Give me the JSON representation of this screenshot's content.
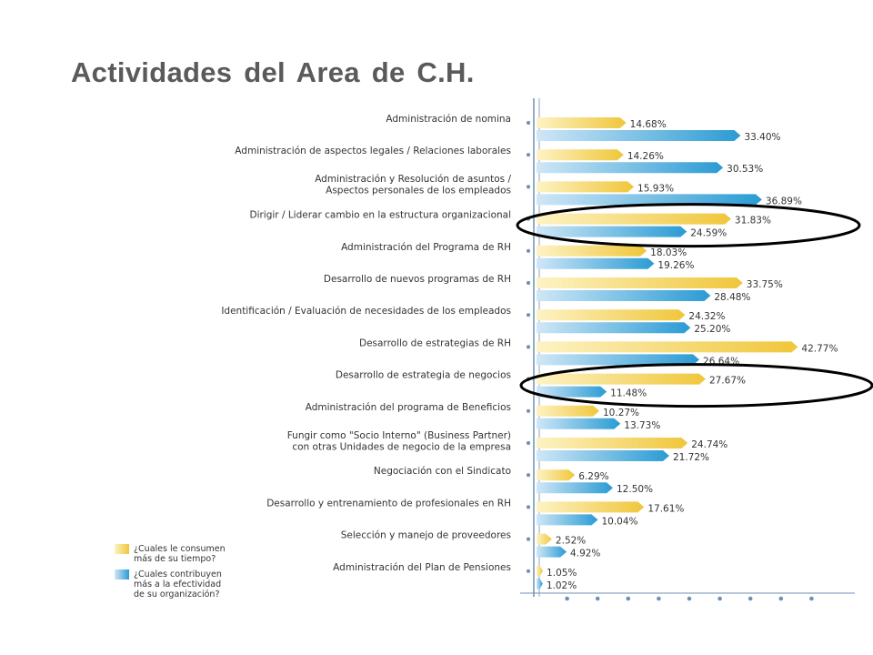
{
  "title": "Actividades del Area de C.H.",
  "colors": {
    "series1_light": "#fdf3c4",
    "series1_dark": "#f0c63a",
    "series2_light": "#cfe7f7",
    "series2_dark": "#2a9bd4",
    "axis": "#6f8fb5",
    "ellipse": "#000000"
  },
  "chart_data": {
    "type": "bar",
    "orientation": "horizontal",
    "title": "",
    "xlabel": "",
    "ylabel": "",
    "xlim": [
      0,
      45
    ],
    "grid": false,
    "legend_position": "bottom-left",
    "categories": [
      [
        "Administración de nomina"
      ],
      [
        "Administración de aspectos legales / Relaciones laborales"
      ],
      [
        "Administración y Resolución de asuntos /",
        "Aspectos personales de los empleados"
      ],
      [
        "Dirigir / Liderar cambio en la estructura organizacional"
      ],
      [
        "Administración del Programa de RH"
      ],
      [
        "Desarrollo de nuevos programas de RH"
      ],
      [
        "Identificación / Evaluación de necesidades de los empleados"
      ],
      [
        "Desarrollo de estrategias de RH"
      ],
      [
        "Desarrollo de estrategia de negocios"
      ],
      [
        "Administración del programa de Beneficios"
      ],
      [
        "Fungir como \"Socio Interno\" (Business Partner)",
        "con otras Unidades de negocio de la empresa"
      ],
      [
        "Negociación con el Sindicato"
      ],
      [
        "Desarrollo y entrenamiento de profesionales en RH"
      ],
      [
        "Selección y manejo de proveedores"
      ],
      [
        "Administración del Plan de Pensiones"
      ]
    ],
    "series": [
      {
        "name": [
          "¿Cuales le consumen",
          "más de su tiempo?"
        ],
        "values": [
          14.68,
          14.26,
          15.93,
          31.83,
          18.03,
          33.75,
          24.32,
          42.77,
          27.67,
          10.27,
          24.74,
          6.29,
          17.61,
          2.52,
          1.05
        ],
        "labels": [
          "14.68%",
          "14.26%",
          "15.93%",
          "31.83%",
          "18.03%",
          "33.75%",
          "24.32%",
          "42.77%",
          "27.67%",
          "10.27%",
          "24.74%",
          "6.29%",
          "17.61%",
          "2.52%",
          "1.05%"
        ]
      },
      {
        "name": [
          "¿Cuales contribuyen",
          "más a la efectividad",
          "de su organización?"
        ],
        "values": [
          33.4,
          30.53,
          36.89,
          24.59,
          19.26,
          28.48,
          25.2,
          26.64,
          11.48,
          13.73,
          21.72,
          12.5,
          10.04,
          4.92,
          1.02
        ],
        "labels": [
          "33.40%",
          "30.53%",
          "36.89%",
          "24.59%",
          "19.26%",
          "28.48%",
          "25.20%",
          "26.64%",
          "11.48%",
          "13.73%",
          "21.72%",
          "12.50%",
          "10.04%",
          "4.92%",
          "1.02%"
        ]
      }
    ],
    "highlighted_categories": [
      3,
      8
    ]
  }
}
